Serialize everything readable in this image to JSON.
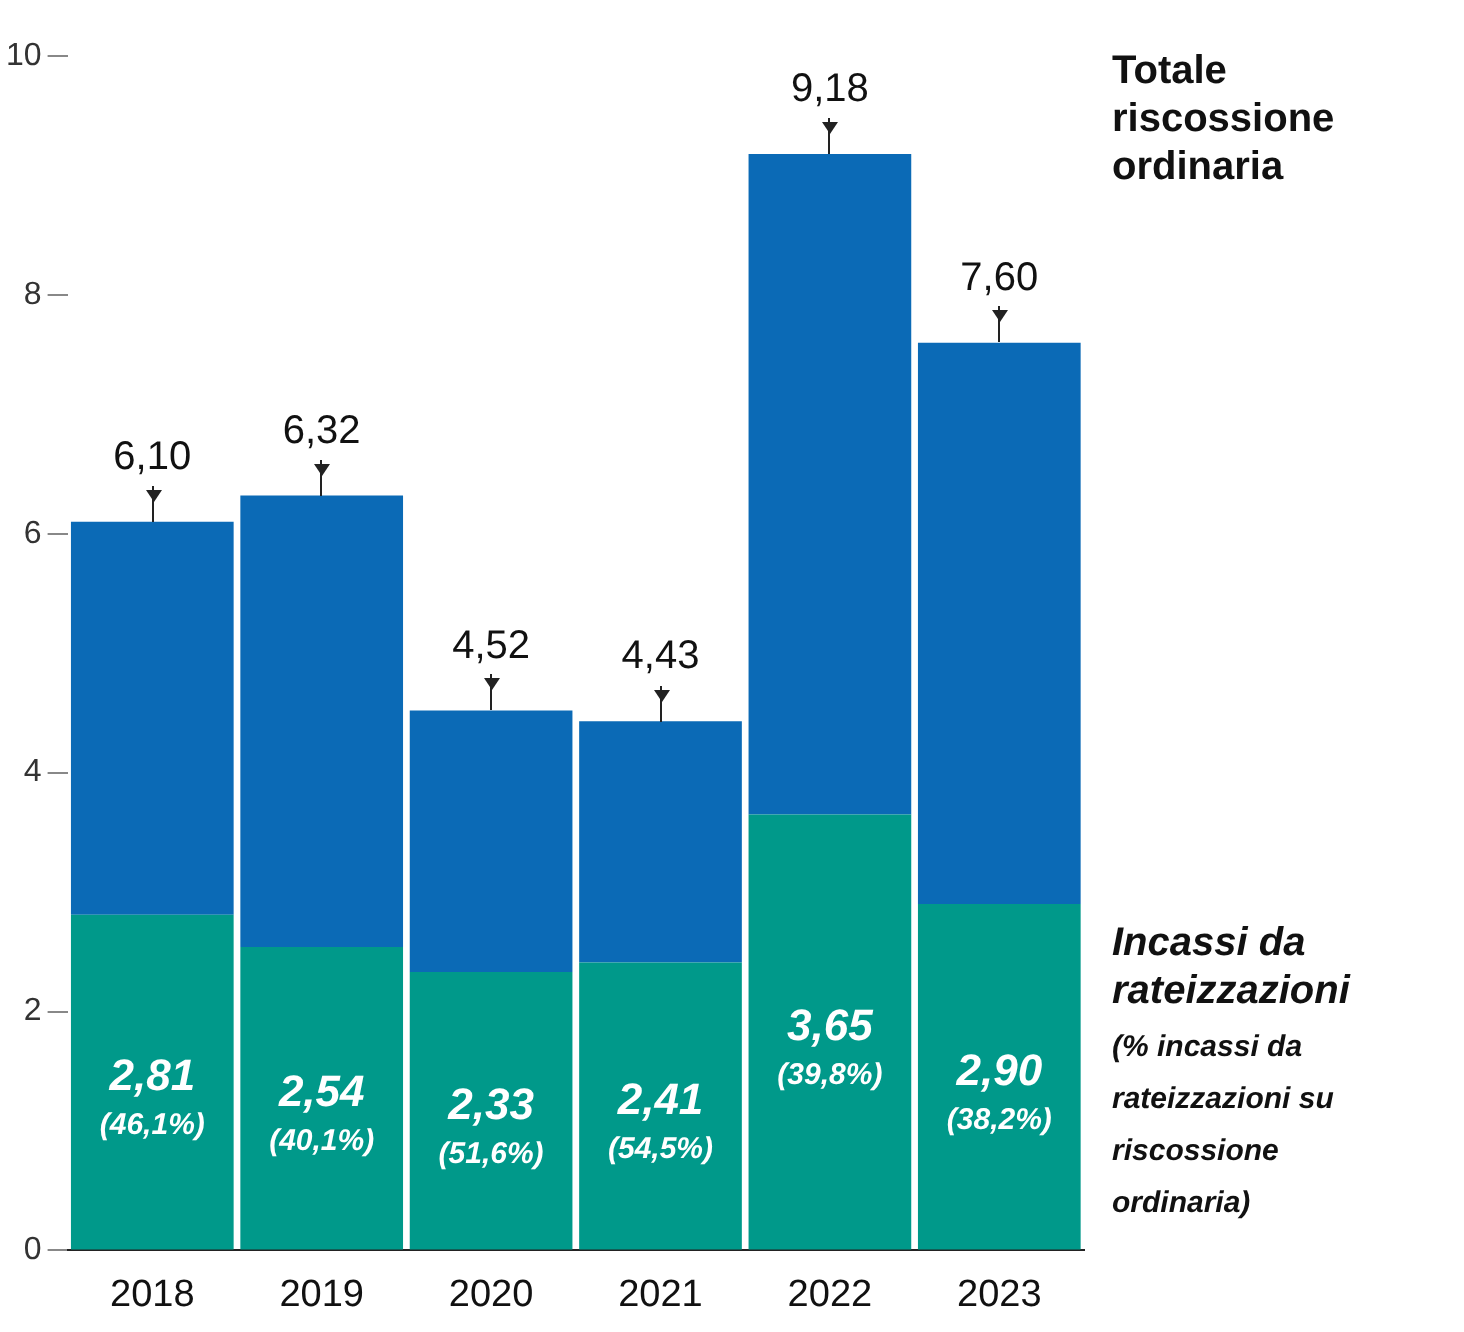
{
  "chart_data": {
    "type": "bar",
    "stacked": true,
    "categories": [
      "2018",
      "2019",
      "2020",
      "2021",
      "2022",
      "2023"
    ],
    "series": [
      {
        "name": "Incassi da rateizzazioni",
        "color": "#00998a",
        "values": [
          2.81,
          2.54,
          2.33,
          2.41,
          3.65,
          2.9
        ],
        "value_labels": [
          "2,81\n(46,1%)",
          "2,54\n(40,1%)",
          "2,33\n(51,6%)",
          "2,41\n(54,5%)",
          "3,65\n(39,8%)",
          "2,90\n(38,2%)"
        ]
      },
      {
        "name": "Totale riscossione ordinaria",
        "color": "#0b6ab6",
        "values": [
          3.29,
          3.78,
          2.19,
          2.02,
          5.53,
          4.7
        ]
      }
    ],
    "totals": [
      "6,10",
      "6,32",
      "4,52",
      "4,43",
      "9,18",
      "7,60"
    ],
    "ylim": [
      0,
      10
    ],
    "yticks": [
      0,
      2,
      4,
      6,
      8,
      10
    ],
    "grid": false,
    "legend": false,
    "annotations": [
      "(% incassi da rateizzazioni su riscossione ordinaria)"
    ]
  }
}
